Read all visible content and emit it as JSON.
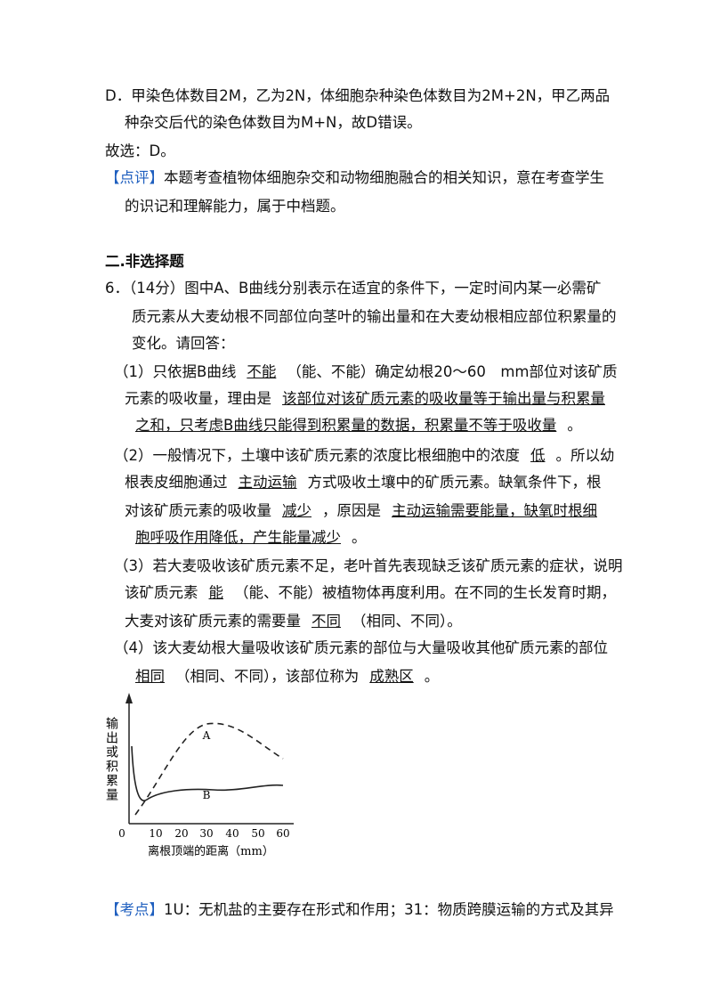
{
  "lines": [
    [
      "D．甲染色体数目2M，乙为2N，体细胞杂种染色体数目为2M+2N，甲乙两品"
    ],
    [
      "种杂交后代的染色体数目为M+N，故D错误。"
    ],
    [
      "故选：D。"
    ],
    [
      {
        "label": "【点评】"
      },
      "本题考查植物体细胞杂交和动物细胞融合的相关知识，意在考查学生"
    ],
    [
      "的识记和理解能力，属于中档题。"
    ],
    [
      {
        "heading": "二.非选择题"
      }
    ],
    [
      "6．（14分）图中A、B曲线分别表示在适宜的条件下，一定时间内某一必需矿"
    ],
    [
      "质元素从大麦幼根不同部位向茎叶的输出量和在大麦幼根相应部位积累量的"
    ],
    [
      "变化。请回答："
    ],
    [
      "（1）只依据B曲线",
      {
        "blank": "不能"
      },
      "（能、不能）确定幼根20～60　mm部位对该矿质"
    ],
    [
      "元素的吸收量，理由是",
      {
        "blank": "该部位对该矿质元素的吸收量等于输出量与积累量"
      }
    ],
    [
      {
        "blank": "之和，只考虑B曲线只能得到积累量的数据，积累量不等于吸收量"
      },
      "。"
    ],
    [
      "（2）一般情况下，土壤中该矿质元素的浓度比根细胞中的浓度",
      {
        "blank": "低"
      },
      "。所以幼"
    ],
    [
      "根表皮细胞通过",
      {
        "blank": "主动运输"
      },
      "方式吸收土壤中的矿质元素。缺氧条件下，根"
    ],
    [
      "对该矿质元素的吸收量",
      {
        "blank": "减少"
      },
      "，原因是",
      {
        "blank": "主动运输需要能量，缺氧时根细"
      }
    ],
    [
      {
        "blank": "胞呼吸作用降低，产生能量减少"
      },
      "。"
    ],
    [
      "（3）若大麦吸收该矿质元素不足，老叶首先表现缺乏该矿质元素的症状，说明"
    ],
    [
      "该矿质元素",
      {
        "blank": "能"
      },
      "（能、不能）被植物体再度利用。在不同的生长发育时期，"
    ],
    [
      "大麦对该矿质元素的需要量",
      {
        "blank": "不同"
      },
      "（相同、不同）。"
    ],
    [
      "（4）该大麦幼根大量吸收该矿质元素的部位与大量吸收其他矿质元素的部位"
    ],
    [
      {
        "blank": "相同"
      },
      "（相同、不同），该部位称为",
      {
        "blank": "成熟区"
      },
      "。"
    ],
    [
      {
        "label": "【考点】"
      },
      "1U：无机盐的主要存在形式和作用；31：物质跨膜运输的方式及其异"
    ]
  ],
  "figure": {
    "y_label": "输出或积累量",
    "x_label": "离根顶端的距离（mm）",
    "x_ticks": [
      "0",
      "10",
      "20",
      "30",
      "40",
      "50",
      "60"
    ],
    "curve_a": "A",
    "curve_b": "B"
  }
}
